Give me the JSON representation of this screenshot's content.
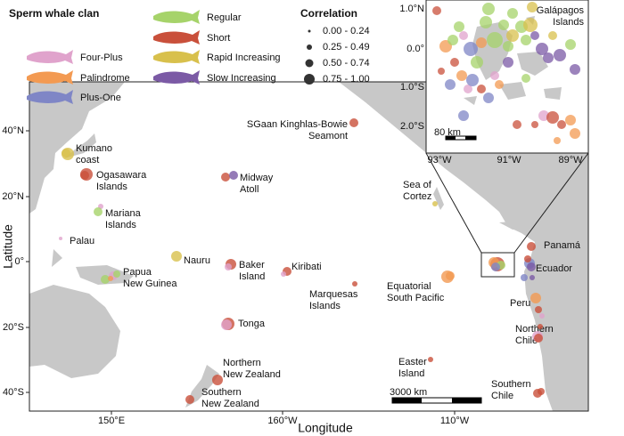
{
  "legend": {
    "clan_title": "Sperm whale clan",
    "clans": [
      {
        "name": "Four-Plus",
        "color": "#e0a3cc"
      },
      {
        "name": "Palindrome",
        "color": "#f39a52"
      },
      {
        "name": "Plus-One",
        "color": "#7f86c6"
      },
      {
        "name": "Regular",
        "color": "#a6d36a"
      },
      {
        "name": "Short",
        "color": "#c9503b"
      },
      {
        "name": "Rapid Increasing",
        "color": "#d8c04c"
      },
      {
        "name": "Slow Increasing",
        "color": "#7b5aa5"
      }
    ],
    "correlation_title": "Correlation",
    "correlation": [
      "0.00 - 0.24",
      "0.25 - 0.49",
      "0.50 - 0.74",
      "0.75 - 1.00"
    ]
  },
  "map": {
    "x_label": "Longitude",
    "y_label": "Latitude",
    "lat_ticks": [
      "40°N",
      "20°N",
      "0°",
      "20°S",
      "40°S"
    ],
    "lon_ticks": [
      "150°E",
      "160°W",
      "110°W"
    ],
    "scale": "3000 km",
    "places": [
      {
        "lines": [
          "Kumano",
          "coast"
        ]
      },
      {
        "lines": [
          "Ogasawara",
          "Islands"
        ]
      },
      {
        "lines": [
          "Mariana",
          "Islands"
        ]
      },
      {
        "lines": [
          "Palau"
        ]
      },
      {
        "lines": [
          "Papua",
          "New Guinea"
        ]
      },
      {
        "lines": [
          "Nauru"
        ]
      },
      {
        "lines": [
          "Baker",
          "Island"
        ]
      },
      {
        "lines": [
          "Kiribati"
        ]
      },
      {
        "lines": [
          "Tonga"
        ]
      },
      {
        "lines": [
          "Midway",
          "Atoll"
        ]
      },
      {
        "lines": [
          "Northern",
          "New Zealand"
        ]
      },
      {
        "lines": [
          "Southern",
          "New Zealand"
        ]
      },
      {
        "lines": [
          "SGaan Kinghlas-Bowie",
          "Seamont"
        ]
      },
      {
        "lines": [
          "Sea of",
          "Cortez"
        ]
      },
      {
        "lines": [
          "Equatorial",
          "South Pacific"
        ]
      },
      {
        "lines": [
          "Marquesas",
          "Islands"
        ]
      },
      {
        "lines": [
          "Easter",
          "Island"
        ]
      },
      {
        "lines": [
          "Panamá"
        ]
      },
      {
        "lines": [
          "Ecuador"
        ]
      },
      {
        "lines": [
          "Peru"
        ]
      },
      {
        "lines": [
          "Northern",
          "Chile"
        ]
      },
      {
        "lines": [
          "Southern",
          "Chile"
        ]
      }
    ]
  },
  "inset": {
    "title": [
      "Galápagos",
      "Islands"
    ],
    "lat_ticks": [
      "1.0°N",
      "0.0°",
      "1.0°S",
      "2.0°S"
    ],
    "lon_ticks": [
      "93°W",
      "91°W",
      "89°W"
    ],
    "scale": "80 km"
  }
}
